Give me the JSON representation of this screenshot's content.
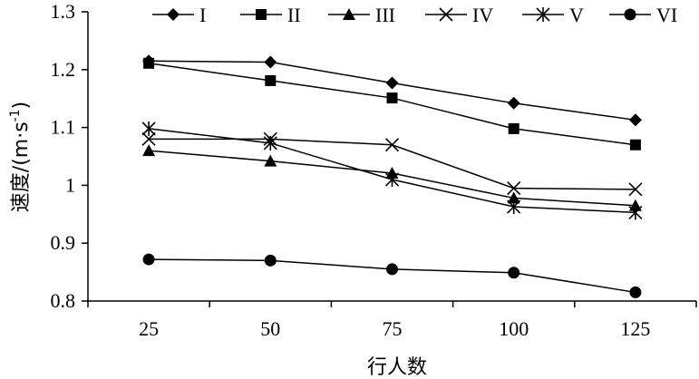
{
  "chart_data": {
    "type": "line",
    "title": "",
    "xlabel": "行人数",
    "ylabel_main": "速度/(m·s",
    "ylabel_sup": "-1",
    "ylabel_close": ")",
    "categories": [
      25,
      50,
      75,
      100,
      125
    ],
    "x_tick_labels": [
      "25",
      "50",
      "75",
      "100",
      "125"
    ],
    "ylim": [
      0.8,
      1.3
    ],
    "y_ticks": [
      0.8,
      0.9,
      1.0,
      1.1,
      1.2,
      1.3
    ],
    "y_tick_labels": [
      "0.8",
      "0.9",
      "1",
      "1.1",
      "1.2",
      "1.3"
    ],
    "grid": false,
    "legend_position": "top",
    "series": [
      {
        "name": "I",
        "marker": "diamond",
        "values": [
          1.215,
          1.213,
          1.177,
          1.142,
          1.113
        ]
      },
      {
        "name": "II",
        "marker": "square",
        "values": [
          1.211,
          1.181,
          1.151,
          1.098,
          1.07
        ]
      },
      {
        "name": "III",
        "marker": "triangle",
        "values": [
          1.06,
          1.042,
          1.021,
          0.978,
          0.965
        ]
      },
      {
        "name": "IV",
        "marker": "x",
        "values": [
          1.08,
          1.08,
          1.07,
          0.995,
          0.993
        ]
      },
      {
        "name": "V",
        "marker": "asterisk",
        "values": [
          1.098,
          1.073,
          1.01,
          0.963,
          0.953
        ]
      },
      {
        "name": "VI",
        "marker": "circle",
        "values": [
          0.872,
          0.87,
          0.855,
          0.849,
          0.815
        ]
      }
    ]
  }
}
